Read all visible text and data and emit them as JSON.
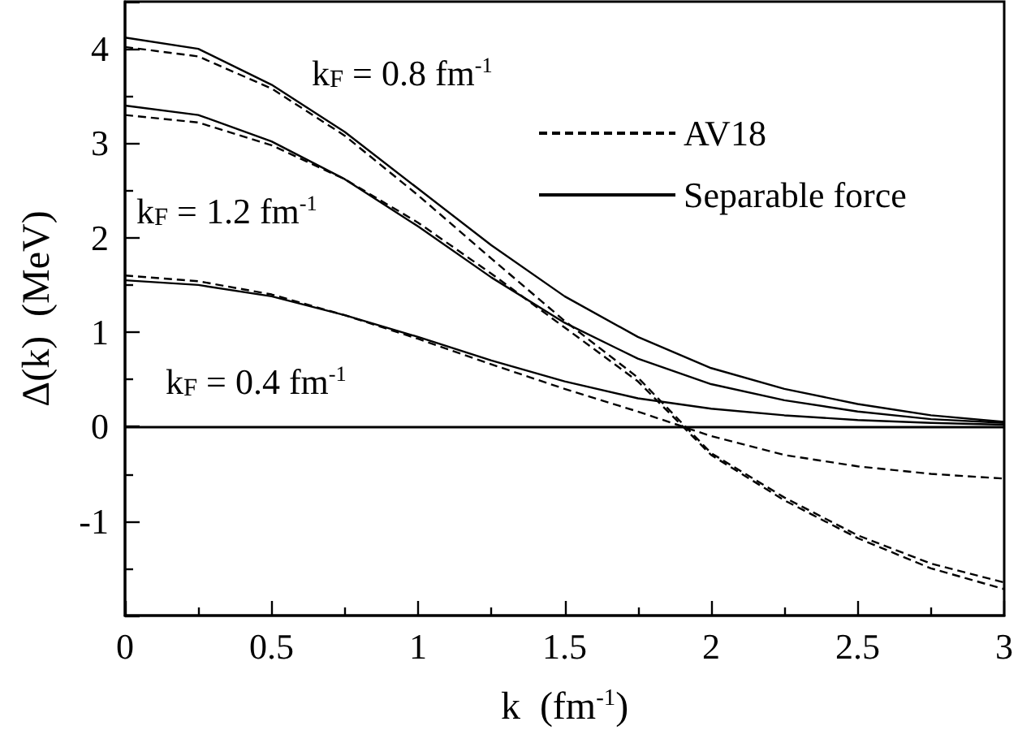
{
  "chart_data": {
    "type": "line",
    "xlabel": "k  (fm$^{-1}$)",
    "ylabel": "Δ(k)  (MeV)",
    "x": [
      0,
      0.25,
      0.5,
      0.75,
      1,
      1.25,
      1.5,
      1.75,
      2,
      2.25,
      2.5,
      2.75,
      3
    ],
    "series": [
      {
        "name": "AV18",
        "color": "#000000",
        "line_style": "dashed",
        "values": [
          1.6,
          1.54,
          1.4,
          1.18,
          0.93,
          0.66,
          0.4,
          0.16,
          -0.1,
          -0.3,
          -0.42,
          -0.5,
          -0.55
        ]
      },
      {
        "color": "#000000",
        "line_style": "dashed",
        "values": [
          4.02,
          3.92,
          3.58,
          3.08,
          2.45,
          1.78,
          1.12,
          0.52,
          -0.28,
          -0.75,
          -1.15,
          -1.45,
          -1.65
        ]
      },
      {
        "color": "#000000",
        "line_style": "dashed",
        "values": [
          3.3,
          3.22,
          2.98,
          2.62,
          2.16,
          1.62,
          1.05,
          0.48,
          -0.3,
          -0.78,
          -1.18,
          -1.5,
          -1.72
        ]
      },
      {
        "name": "Separable force",
        "color": "#000000",
        "line_style": "solid",
        "values": [
          1.55,
          1.5,
          1.38,
          1.18,
          0.95,
          0.7,
          0.48,
          0.3,
          0.19,
          0.12,
          0.07,
          0.04,
          0.02
        ]
      },
      {
        "color": "#000000",
        "line_style": "solid",
        "values": [
          4.12,
          4.0,
          3.62,
          3.12,
          2.52,
          1.92,
          1.38,
          0.95,
          0.62,
          0.4,
          0.24,
          0.12,
          0.05
        ]
      },
      {
        "color": "#000000",
        "line_style": "solid",
        "values": [
          3.4,
          3.3,
          3.02,
          2.62,
          2.12,
          1.58,
          1.1,
          0.72,
          0.45,
          0.28,
          0.16,
          0.08,
          0.04
        ]
      }
    ],
    "annotations": [
      "k$_{F}$ = 0.8 fm$^{-1}$",
      "k$_{F}$ = 1.2 fm$^{-1}$",
      "k$_{F}$ = 0.4 fm$^{-1}$"
    ],
    "ref_lines": [
      {
        "axis": "y",
        "value": 0,
        "color": "#000000",
        "line_style": "solid"
      }
    ],
    "xlim": [
      0,
      3
    ],
    "ylim": [
      -2,
      4.5
    ],
    "xticks": [
      0,
      0.5,
      1,
      1.5,
      2,
      2.5,
      3
    ],
    "yticks": [
      -1,
      0,
      1,
      2,
      3,
      4
    ],
    "legend": "top right",
    "marker": "none",
    "grid": false
  }
}
